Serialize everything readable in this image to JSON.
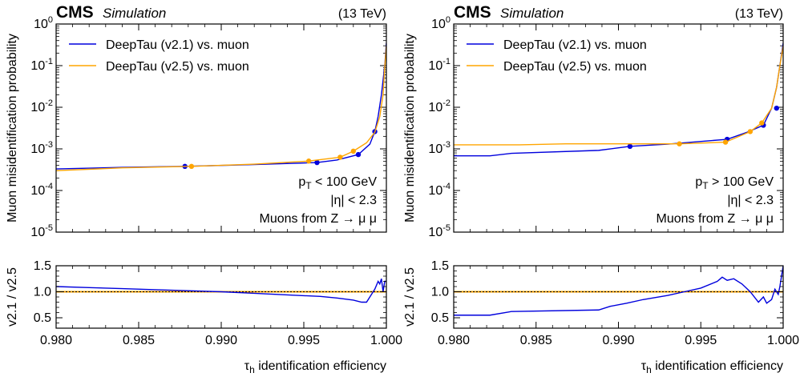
{
  "colors": {
    "v21": "#0000dd",
    "v25": "#ffa500",
    "ref_line": "#000000",
    "ref_line_overlay": "#ffa500",
    "frame": "#000000"
  },
  "panels": [
    {
      "header": {
        "experiment": "CMS",
        "tag": "Simulation",
        "energy": "(13 TeV)"
      },
      "main": {
        "ylabel": "Muon misidentification probability",
        "yscale": "log",
        "yticks": [
          {
            "base": "10",
            "exp": "0"
          },
          {
            "base": "10",
            "exp": "-1"
          },
          {
            "base": "10",
            "exp": "-2"
          },
          {
            "base": "10",
            "exp": "-3"
          },
          {
            "base": "10",
            "exp": "-4"
          },
          {
            "base": "10",
            "exp": "-5"
          }
        ],
        "legend": [
          "DeepTau (v2.1) vs. muon",
          "DeepTau (v2.5) vs. muon"
        ],
        "cuts": [
          {
            "pre": "p",
            "sub": "T",
            "post": " < 100 GeV"
          },
          {
            "pre": "|η| < 2.3",
            "sub": "",
            "post": ""
          },
          {
            "pre": "Muons from Z → μ μ",
            "sub": "",
            "post": ""
          }
        ]
      },
      "ratio": {
        "ylabel": "v2.1 / v2.5",
        "yticks": [
          "0.5",
          "1.0",
          "1.5"
        ]
      },
      "xlabel": {
        "pre": "τ",
        "sub": "h",
        "post": " identification efficiency"
      },
      "xticks": [
        "0.980",
        "0.985",
        "0.990",
        "0.995",
        "1.000"
      ]
    },
    {
      "header": {
        "experiment": "CMS",
        "tag": "Simulation",
        "energy": "(13 TeV)"
      },
      "main": {
        "ylabel": "Muon misidentification probability",
        "yscale": "log",
        "yticks": [
          {
            "base": "10",
            "exp": "0"
          },
          {
            "base": "10",
            "exp": "-1"
          },
          {
            "base": "10",
            "exp": "-2"
          },
          {
            "base": "10",
            "exp": "-3"
          },
          {
            "base": "10",
            "exp": "-4"
          },
          {
            "base": "10",
            "exp": "-5"
          }
        ],
        "legend": [
          "DeepTau (v2.1) vs. muon",
          "DeepTau (v2.5) vs. muon"
        ],
        "cuts": [
          {
            "pre": "p",
            "sub": "T",
            "post": " > 100 GeV"
          },
          {
            "pre": "|η| < 2.3",
            "sub": "",
            "post": ""
          },
          {
            "pre": "Muons from Z → μ μ",
            "sub": "",
            "post": ""
          }
        ]
      },
      "ratio": {
        "ylabel": "v2.1 / v2.5",
        "yticks": [
          "0.5",
          "1.0",
          "1.5"
        ]
      },
      "xlabel": {
        "pre": "τ",
        "sub": "h",
        "post": " identification efficiency"
      },
      "xticks": [
        "0.980",
        "0.985",
        "0.990",
        "0.995",
        "1.000"
      ]
    }
  ],
  "chart_data": [
    {
      "type": "line",
      "xlim": [
        0.98,
        1.0
      ],
      "ylim": [
        1e-05,
        1
      ],
      "yscale": "log",
      "grid": false,
      "legend_position": "top-left",
      "series": [
        {
          "name": "DeepTau (v2.1) vs. muon",
          "x": [
            0.98,
            0.984,
            0.9878,
            0.992,
            0.9958,
            0.997,
            0.9983,
            0.999,
            0.9993,
            0.9995,
            0.9997,
            0.9999,
            1.0
          ],
          "y": [
            0.00033,
            0.00036,
            0.00038,
            0.00042,
            0.00047,
            0.00054,
            0.00073,
            0.0013,
            0.0026,
            0.006,
            0.02,
            0.1,
            0.35
          ],
          "markers_x": [
            0.9878,
            0.9958,
            0.9983,
            0.9993
          ],
          "markers_y": [
            0.00038,
            0.00047,
            0.00073,
            0.0026
          ]
        },
        {
          "name": "DeepTau (v2.5) vs. muon",
          "x": [
            0.98,
            0.984,
            0.9882,
            0.992,
            0.9953,
            0.9972,
            0.998,
            0.9988,
            0.9993,
            0.9996,
            0.9998,
            0.9999,
            1.0
          ],
          "y": [
            0.0003,
            0.00035,
            0.00038,
            0.00043,
            0.00051,
            0.00063,
            0.00088,
            0.0014,
            0.0025,
            0.006,
            0.02,
            0.09,
            0.3
          ],
          "markers_x": [
            0.9882,
            0.9953,
            0.9972,
            0.998
          ],
          "markers_y": [
            0.00038,
            0.00051,
            0.00063,
            0.00088
          ]
        }
      ],
      "ratio": {
        "ylabel": "v2.1 / v2.5",
        "ylim": [
          0.3,
          1.5
        ],
        "reference": 1.0,
        "x": [
          0.98,
          0.982,
          0.984,
          0.986,
          0.988,
          0.99,
          0.992,
          0.994,
          0.996,
          0.997,
          0.998,
          0.9985,
          0.9988,
          0.9991,
          0.9993,
          0.9995,
          0.9996,
          0.9997,
          0.9998,
          0.9999,
          1.0
        ],
        "y": [
          1.1,
          1.08,
          1.06,
          1.04,
          1.02,
          1.0,
          0.97,
          0.94,
          0.91,
          0.88,
          0.84,
          0.8,
          0.8,
          0.95,
          1.05,
          1.2,
          1.15,
          1.25,
          1.0,
          1.2,
          1.2
        ]
      }
    },
    {
      "type": "line",
      "xlim": [
        0.98,
        1.0
      ],
      "ylim": [
        1e-05,
        1
      ],
      "yscale": "log",
      "grid": false,
      "legend_position": "top-left",
      "series": [
        {
          "name": "DeepTau (v2.1) vs. muon",
          "x": [
            0.98,
            0.9822,
            0.9835,
            0.9888,
            0.9907,
            0.993,
            0.9966,
            0.9978,
            0.9988,
            0.9993,
            0.9996,
            0.9998,
            1.0
          ],
          "y": [
            0.00068,
            0.00068,
            0.00078,
            0.00092,
            0.00115,
            0.0013,
            0.0017,
            0.0025,
            0.0037,
            0.0095,
            0.03,
            0.1,
            0.35
          ],
          "markers_x": [
            0.9907,
            0.9966,
            0.9988,
            0.9996
          ],
          "markers_y": [
            0.00115,
            0.0017,
            0.0037,
            0.0095
          ]
        },
        {
          "name": "DeepTau (v2.5) vs. muon",
          "x": [
            0.98,
            0.984,
            0.9868,
            0.9937,
            0.9965,
            0.998,
            0.9987,
            0.9993,
            0.9996,
            0.9998,
            1.0
          ],
          "y": [
            0.00125,
            0.00125,
            0.00132,
            0.00132,
            0.00145,
            0.0026,
            0.0042,
            0.0095,
            0.03,
            0.1,
            0.3
          ],
          "markers_x": [
            0.9937,
            0.9965,
            0.998,
            0.9987
          ],
          "markers_y": [
            0.00132,
            0.00145,
            0.0026,
            0.0042
          ]
        }
      ],
      "ratio": {
        "ylabel": "v2.1 / v2.5",
        "ylim": [
          0.3,
          1.5
        ],
        "reference": 1.0,
        "x": [
          0.98,
          0.9822,
          0.9835,
          0.9888,
          0.9895,
          0.9905,
          0.9915,
          0.993,
          0.994,
          0.995,
          0.996,
          0.9963,
          0.9966,
          0.997,
          0.9975,
          0.998,
          0.9985,
          0.9988,
          0.999,
          0.9993,
          0.9995,
          0.9997,
          0.9998,
          0.9999,
          1.0
        ],
        "y": [
          0.55,
          0.55,
          0.62,
          0.65,
          0.72,
          0.78,
          0.85,
          0.93,
          1.0,
          1.07,
          1.2,
          1.28,
          1.22,
          1.25,
          1.15,
          1.0,
          0.8,
          0.9,
          0.78,
          0.85,
          1.05,
          0.95,
          1.1,
          1.3,
          1.5
        ]
      }
    }
  ]
}
